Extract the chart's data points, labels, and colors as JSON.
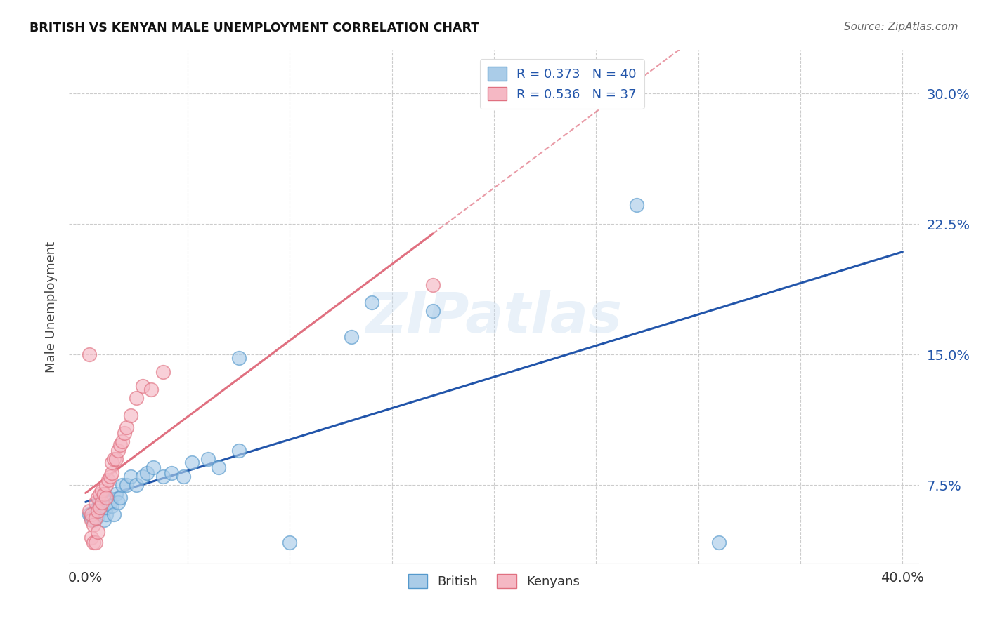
{
  "title": "BRITISH VS KENYAN MALE UNEMPLOYMENT CORRELATION CHART",
  "source": "Source: ZipAtlas.com",
  "ylabel": "Male Unemployment",
  "yticks": [
    "7.5%",
    "15.0%",
    "22.5%",
    "30.0%"
  ],
  "ytick_vals": [
    0.075,
    0.15,
    0.225,
    0.3
  ],
  "xlim": [
    0.0,
    0.4
  ],
  "ylim": [
    0.03,
    0.32
  ],
  "legend_blue_r": "R = 0.373",
  "legend_blue_n": "N = 40",
  "legend_pink_r": "R = 0.536",
  "legend_pink_n": "N = 37",
  "blue_color": "#aacce8",
  "pink_color": "#f5b8c4",
  "blue_edge_color": "#5599cc",
  "pink_edge_color": "#e07080",
  "blue_line_color": "#2255aa",
  "pink_line_color": "#e07080",
  "watermark": "ZIPatlas",
  "british_x": [
    0.002,
    0.003,
    0.004,
    0.005,
    0.006,
    0.006,
    0.007,
    0.007,
    0.008,
    0.009,
    0.01,
    0.01,
    0.011,
    0.012,
    0.013,
    0.014,
    0.015,
    0.016,
    0.017,
    0.018,
    0.02,
    0.022,
    0.025,
    0.028,
    0.03,
    0.033,
    0.038,
    0.042,
    0.048,
    0.052,
    0.06,
    0.065,
    0.075,
    0.075,
    0.1,
    0.13,
    0.14,
    0.17,
    0.27,
    0.31
  ],
  "british_y": [
    0.058,
    0.056,
    0.055,
    0.06,
    0.057,
    0.062,
    0.06,
    0.065,
    0.063,
    0.055,
    0.058,
    0.062,
    0.068,
    0.065,
    0.063,
    0.058,
    0.07,
    0.065,
    0.068,
    0.075,
    0.075,
    0.08,
    0.075,
    0.08,
    0.082,
    0.085,
    0.08,
    0.082,
    0.08,
    0.088,
    0.09,
    0.085,
    0.095,
    0.148,
    0.042,
    0.16,
    0.18,
    0.175,
    0.236,
    0.042
  ],
  "kenyan_x": [
    0.002,
    0.003,
    0.003,
    0.004,
    0.005,
    0.005,
    0.006,
    0.006,
    0.007,
    0.007,
    0.008,
    0.008,
    0.009,
    0.01,
    0.01,
    0.011,
    0.012,
    0.013,
    0.013,
    0.014,
    0.015,
    0.016,
    0.017,
    0.018,
    0.019,
    0.02,
    0.022,
    0.025,
    0.028,
    0.032,
    0.038,
    0.002,
    0.003,
    0.004,
    0.005,
    0.006,
    0.17
  ],
  "kenyan_y": [
    0.06,
    0.055,
    0.058,
    0.052,
    0.056,
    0.065,
    0.06,
    0.068,
    0.062,
    0.07,
    0.065,
    0.072,
    0.07,
    0.075,
    0.068,
    0.078,
    0.08,
    0.082,
    0.088,
    0.09,
    0.09,
    0.095,
    0.098,
    0.1,
    0.105,
    0.108,
    0.115,
    0.125,
    0.132,
    0.13,
    0.14,
    0.15,
    0.045,
    0.042,
    0.042,
    0.048,
    0.19
  ]
}
